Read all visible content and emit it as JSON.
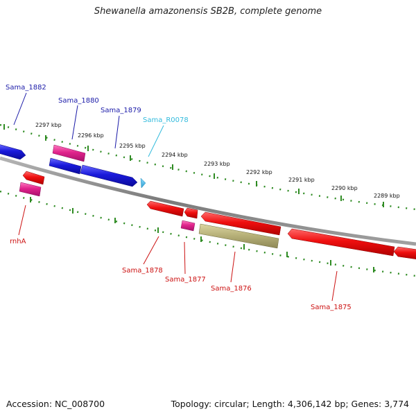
{
  "title": "Shewanella amazonensis SB2B, complete genome",
  "footer": {
    "accession": "Accession: NC_008700",
    "summary": "Topology: circular; Length: 4,306,142 bp; Genes: 3,774"
  },
  "scale_labels": [
    "2297 kbp",
    "2296 kbp",
    "2295 kbp",
    "2294 kbp",
    "2293 kbp",
    "2292 kbp",
    "2291 kbp",
    "2290 kbp",
    "2289 kbp"
  ],
  "gene_labels": {
    "sama_1882": "Sama_1882",
    "sama_1880": "Sama_1880",
    "sama_1879": "Sama_1879",
    "sama_r0078": "Sama_R0078",
    "rnha": "rnhA",
    "sama_1878": "Sama_1878",
    "sama_1877": "Sama_1877",
    "sama_1876": "Sama_1876",
    "sama_1875": "Sama_1875"
  },
  "colors": {
    "background": "#ffffff",
    "backbone": "#8c8c8c",
    "tick": "#2e8b22",
    "gene_forward": "#1a1adb",
    "gene_reverse": "#ef0f0f",
    "gene_pink": "#e0238c",
    "gene_olive": "#b8b27a",
    "rna": "#3fb4e4",
    "label_blue": "#1a1aa8",
    "label_red": "#cc1111",
    "label_cyan": "#33bbdd"
  }
}
